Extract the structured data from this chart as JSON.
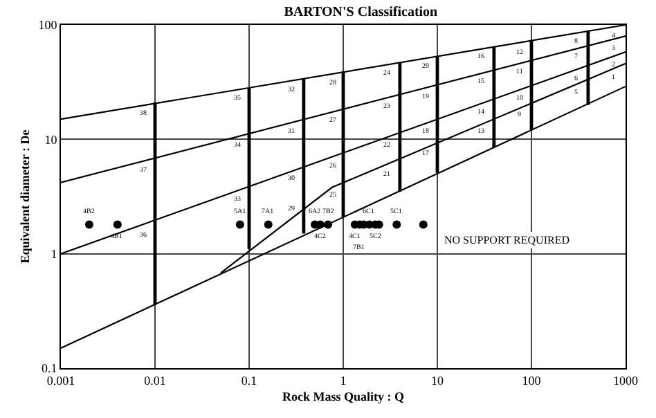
{
  "chart_data": {
    "type": "line",
    "title": "BARTON'S Classification",
    "xlabel": "Rock Mass Quality : Q",
    "ylabel": "Equivalent diameter : De",
    "log": "xy",
    "grid": true,
    "xlim": [
      0.001,
      1000
    ],
    "ylim": [
      0.1,
      100
    ],
    "xticks": [
      0.001,
      0.01,
      0.1,
      1,
      10,
      100,
      1000
    ],
    "yticks": [
      0.1,
      1,
      10,
      100
    ],
    "series": [
      {
        "color": "#000000",
        "x": [
          0.001,
          1000
        ],
        "values": [
          15,
          100
        ]
      },
      {
        "color": "#000000",
        "x": [
          0.001,
          1000
        ],
        "values": [
          4.2,
          80
        ]
      },
      {
        "color": "#000000",
        "x": [
          0.001,
          1000
        ],
        "values": [
          1.0,
          58
        ]
      },
      {
        "color": "#000000",
        "x": [
          0.05,
          0.76,
          1000
        ],
        "values": [
          0.68,
          3.8,
          46
        ]
      },
      {
        "color": "#000000",
        "x": [
          0.001,
          1000
        ],
        "values": [
          0.15,
          29
        ]
      },
      {
        "color": "#000000",
        "x": [
          0.01,
          0.01
        ],
        "values": [
          0.36,
          21
        ]
      },
      {
        "color": "#000000",
        "x": [
          0.1,
          0.1
        ],
        "values": [
          1.1,
          28
        ]
      },
      {
        "color": "#000000",
        "x": [
          0.38,
          0.38
        ],
        "values": [
          1.5,
          34
        ]
      },
      {
        "color": "#000000",
        "x": [
          1,
          1
        ],
        "values": [
          2.1,
          39
        ]
      },
      {
        "color": "#000000",
        "x": [
          4,
          4
        ],
        "values": [
          3.5,
          47
        ]
      },
      {
        "color": "#000000",
        "x": [
          10,
          10
        ],
        "values": [
          5.1,
          53
        ]
      },
      {
        "color": "#000000",
        "x": [
          40,
          40
        ],
        "values": [
          8.5,
          64
        ]
      },
      {
        "color": "#000000",
        "x": [
          100,
          100
        ],
        "values": [
          12,
          73
        ]
      },
      {
        "color": "#000000",
        "x": [
          400,
          400
        ],
        "values": [
          20,
          88
        ]
      },
      {
        "type": "scatter",
        "color": "#000000",
        "marker": "circle",
        "x": [
          0.002,
          0.004,
          0.08,
          0.16,
          0.5,
          0.57,
          0.69,
          1.33,
          1.5,
          1.66,
          1.9,
          2.2,
          2.4,
          3.7,
          7.1
        ],
        "values": [
          1.8,
          1.8,
          1.8,
          1.8,
          1.8,
          1.8,
          1.8,
          1.8,
          1.8,
          1.8,
          1.8,
          1.8,
          1.8,
          1.8,
          1.8
        ]
      }
    ],
    "annotations": [
      "NO SUPPORT REQUIRED",
      "38",
      "37",
      "36",
      "35",
      "34",
      "33",
      "32",
      "31",
      "30",
      "29",
      "28",
      "27",
      "26",
      "25",
      "24",
      "23",
      "22",
      "21",
      "20",
      "19",
      "18",
      "17",
      "16",
      "15",
      "14",
      "13",
      "12",
      "11",
      "10",
      "9",
      "8",
      "7",
      "6",
      "5",
      "4",
      "3",
      "2",
      "1",
      {
        "text": "4B2",
        "x": 0.002,
        "y": 1.8
      },
      {
        "text": "4B1",
        "x": 0.004,
        "y": 1.8
      },
      {
        "text": "5A1",
        "x": 0.08,
        "y": 1.8
      },
      {
        "text": "7A1",
        "x": 0.16,
        "y": 1.8
      },
      {
        "text": "6A2",
        "x": 0.5,
        "y": 1.8
      },
      {
        "text": "4C2",
        "x": 0.57,
        "y": 1.8
      },
      {
        "text": "7B2",
        "x": 0.69,
        "y": 1.8
      },
      {
        "text": "4C1",
        "x": 1.33,
        "y": 1.8
      },
      {
        "text": "7B1",
        "x": 1.5,
        "y": 1.8
      },
      {
        "text": "6C1",
        "x": 1.9,
        "y": 1.8
      },
      {
        "text": "5C2",
        "x": 2.2,
        "y": 1.8
      },
      {
        "text": "5C1",
        "x": 3.7,
        "y": 1.8
      }
    ]
  }
}
